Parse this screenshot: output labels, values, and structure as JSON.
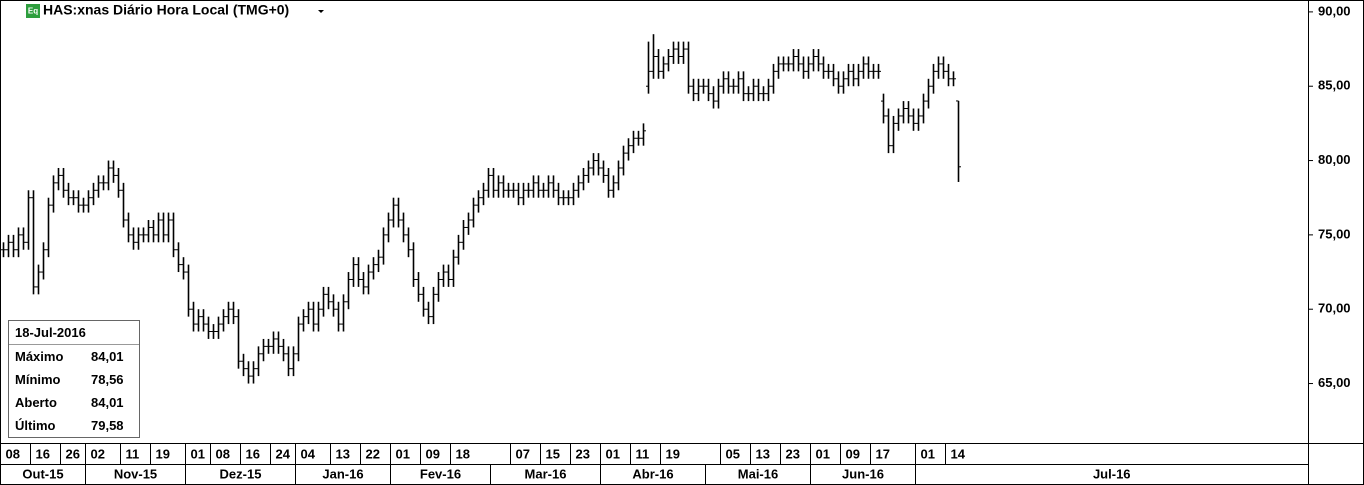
{
  "chart_data": {
    "type": "ohlc",
    "icon_label": "Eq",
    "title": "HAS:xnas Diário Hora Local (TMG+0)",
    "color": "#000000",
    "x": [
      "2015-10-08",
      "2015-10-09",
      "2015-10-12",
      "2015-10-13",
      "2015-10-14",
      "2015-10-15",
      "2015-10-16",
      "2015-10-19",
      "2015-10-20",
      "2015-10-21",
      "2015-10-22",
      "2015-10-23",
      "2015-10-26",
      "2015-10-27",
      "2015-10-28",
      "2015-10-29",
      "2015-10-30",
      "2015-11-02",
      "2015-11-03",
      "2015-11-04",
      "2015-11-05",
      "2015-11-06",
      "2015-11-09",
      "2015-11-10",
      "2015-11-11",
      "2015-11-12",
      "2015-11-13",
      "2015-11-16",
      "2015-11-17",
      "2015-11-18",
      "2015-11-19",
      "2015-11-20",
      "2015-11-23",
      "2015-11-24",
      "2015-11-25",
      "2015-11-27",
      "2015-11-30",
      "2015-12-01",
      "2015-12-02",
      "2015-12-03",
      "2015-12-04",
      "2015-12-07",
      "2015-12-08",
      "2015-12-09",
      "2015-12-10",
      "2015-12-11",
      "2015-12-14",
      "2015-12-15",
      "2015-12-16",
      "2015-12-17",
      "2015-12-18",
      "2015-12-21",
      "2015-12-22",
      "2015-12-23",
      "2015-12-24",
      "2015-12-28",
      "2015-12-29",
      "2015-12-30",
      "2015-12-31",
      "2016-01-04",
      "2016-01-05",
      "2016-01-06",
      "2016-01-07",
      "2016-01-08",
      "2016-01-11",
      "2016-01-12",
      "2016-01-13",
      "2016-01-14",
      "2016-01-15",
      "2016-01-19",
      "2016-01-20",
      "2016-01-21",
      "2016-01-22",
      "2016-01-25",
      "2016-01-26",
      "2016-01-27",
      "2016-01-28",
      "2016-01-29",
      "2016-02-01",
      "2016-02-02",
      "2016-02-03",
      "2016-02-04",
      "2016-02-05",
      "2016-02-08",
      "2016-02-09",
      "2016-02-10",
      "2016-02-11",
      "2016-02-12",
      "2016-02-16",
      "2016-02-17",
      "2016-02-18",
      "2016-02-19",
      "2016-02-22",
      "2016-02-23",
      "2016-02-24",
      "2016-02-25",
      "2016-02-26",
      "2016-02-29",
      "2016-03-01",
      "2016-03-02",
      "2016-03-03",
      "2016-03-04",
      "2016-03-07",
      "2016-03-08",
      "2016-03-09",
      "2016-03-10",
      "2016-03-11",
      "2016-03-14",
      "2016-03-15",
      "2016-03-16",
      "2016-03-17",
      "2016-03-18",
      "2016-03-21",
      "2016-03-22",
      "2016-03-23",
      "2016-03-24",
      "2016-03-28",
      "2016-03-29",
      "2016-03-30",
      "2016-03-31",
      "2016-04-01",
      "2016-04-04",
      "2016-04-05",
      "2016-04-06",
      "2016-04-07",
      "2016-04-08",
      "2016-04-11",
      "2016-04-12",
      "2016-04-13",
      "2016-04-14",
      "2016-04-15",
      "2016-04-18",
      "2016-04-19",
      "2016-04-20",
      "2016-04-21",
      "2016-04-22",
      "2016-04-25",
      "2016-04-26",
      "2016-04-27",
      "2016-04-28",
      "2016-04-29",
      "2016-05-02",
      "2016-05-03",
      "2016-05-04",
      "2016-05-05",
      "2016-05-06",
      "2016-05-09",
      "2016-05-10",
      "2016-05-11",
      "2016-05-12",
      "2016-05-13",
      "2016-05-16",
      "2016-05-17",
      "2016-05-18",
      "2016-05-19",
      "2016-05-20",
      "2016-05-23",
      "2016-05-24",
      "2016-05-25",
      "2016-05-26",
      "2016-05-27",
      "2016-05-31",
      "2016-06-01",
      "2016-06-02",
      "2016-06-03",
      "2016-06-06",
      "2016-06-07",
      "2016-06-08",
      "2016-06-09",
      "2016-06-10",
      "2016-06-13",
      "2016-06-14",
      "2016-06-15",
      "2016-06-16",
      "2016-06-17",
      "2016-06-21",
      "2016-06-22",
      "2016-06-23",
      "2016-06-24",
      "2016-06-27",
      "2016-06-28",
      "2016-06-29",
      "2016-06-30",
      "2016-07-01",
      "2016-07-05",
      "2016-07-06",
      "2016-07-07",
      "2016-07-08",
      "2016-07-11",
      "2016-07-14",
      "2016-07-15",
      "2016-07-18"
    ],
    "open": [
      74,
      74,
      74.5,
      74,
      75,
      74.5,
      77.5,
      71.5,
      72.5,
      74,
      77,
      78.5,
      79,
      78,
      77.5,
      77.5,
      77,
      77,
      77.5,
      78,
      78.5,
      78.5,
      79.5,
      79,
      78,
      76,
      75,
      74.5,
      75,
      75,
      75.5,
      75,
      76,
      75,
      76,
      74,
      73,
      72.5,
      70,
      69,
      69.5,
      69,
      68.5,
      68.5,
      69,
      69.5,
      70,
      69.5,
      66.5,
      66,
      65.5,
      66,
      67,
      67.5,
      67.5,
      68,
      67.5,
      67,
      66,
      67,
      69,
      69.5,
      70,
      69,
      70,
      71,
      70.5,
      70,
      69,
      70.5,
      72,
      73,
      72,
      71.5,
      72.5,
      73,
      73.5,
      75,
      76,
      77,
      76,
      75,
      74,
      72,
      71,
      70,
      69.5,
      71,
      72,
      72.5,
      72,
      73.5,
      74.5,
      75.5,
      76,
      77,
      77.5,
      78,
      79,
      78,
      78.5,
      78,
      78,
      78,
      77.5,
      78,
      78,
      78.5,
      78,
      78,
      78.5,
      78,
      77.5,
      77.5,
      77.5,
      78,
      78.5,
      79,
      79.5,
      80,
      79.5,
      79,
      78,
      78.5,
      79.5,
      80.5,
      81,
      81.5,
      81.5,
      85,
      86,
      87,
      86,
      86.5,
      87,
      87.5,
      87,
      87.5,
      85,
      84.5,
      85,
      85,
      84.5,
      84,
      85,
      85.5,
      85,
      85,
      85.5,
      84.5,
      84.5,
      85,
      84.5,
      84.5,
      85,
      86,
      86.5,
      86.5,
      86.5,
      87,
      86.5,
      86,
      86.5,
      87,
      86.5,
      86,
      86,
      85.5,
      85,
      85.5,
      86,
      85.5,
      86,
      86.5,
      86,
      86,
      84,
      83,
      81,
      82.5,
      83,
      83.5,
      83,
      82.5,
      83,
      84,
      85,
      86,
      86.5,
      86,
      85.5,
      84.01
    ],
    "high": [
      74.5,
      75,
      75,
      75.5,
      75.5,
      78,
      78,
      73,
      74.5,
      77.5,
      79,
      79.5,
      79.5,
      78.5,
      78,
      78,
      77.5,
      78,
      78.5,
      79,
      79,
      80,
      80,
      79.5,
      78.5,
      76.5,
      75.5,
      75.5,
      75.5,
      76,
      76,
      76.5,
      76.5,
      76.5,
      76.5,
      74.5,
      73.5,
      73,
      70.5,
      70,
      70,
      69.5,
      69,
      69.5,
      70,
      70.5,
      70.5,
      70,
      67,
      66.5,
      66.5,
      67.5,
      68,
      68,
      68.5,
      68.5,
      68,
      67.5,
      67.5,
      69.5,
      70,
      70.5,
      70.5,
      70.5,
      71.5,
      71.5,
      71,
      70.5,
      71,
      72.5,
      73.5,
      73.5,
      72.5,
      73,
      73.5,
      74,
      75.5,
      76.5,
      77.5,
      77.5,
      76.5,
      75.5,
      74.5,
      72.5,
      71.5,
      70.5,
      71.5,
      72.5,
      73,
      73,
      74,
      75,
      76,
      76.5,
      77.5,
      78,
      78.5,
      79.5,
      79.5,
      79,
      79,
      78.5,
      78.5,
      78.5,
      78.5,
      78.5,
      79,
      79,
      78.5,
      79,
      79,
      78.5,
      78,
      78,
      78.5,
      79,
      79.5,
      80,
      80.5,
      80.5,
      80,
      79.5,
      79,
      80,
      81,
      81.5,
      82,
      82,
      82.5,
      88,
      88.5,
      87.5,
      87,
      87.5,
      88,
      88,
      88,
      88,
      85.5,
      85.5,
      85.5,
      85.5,
      85,
      85.5,
      86,
      86,
      85.5,
      86,
      86,
      85,
      85.5,
      85.5,
      85,
      85.5,
      86.5,
      87,
      87,
      87,
      87.5,
      87.5,
      87,
      87,
      87.5,
      87.5,
      87,
      86.5,
      86.5,
      86,
      86,
      86.5,
      86.5,
      86.5,
      87,
      87,
      86.5,
      86.5,
      84.5,
      83.5,
      83,
      83.5,
      84,
      84,
      83.5,
      83.5,
      84.5,
      85.5,
      86.5,
      87,
      87,
      86.5,
      86,
      84.01
    ],
    "low": [
      73.5,
      73.5,
      73.5,
      73.5,
      74,
      74,
      71,
      71,
      72,
      73.5,
      76.5,
      78,
      77.5,
      77,
      77,
      76.5,
      76.5,
      76.5,
      77,
      77.5,
      78,
      78,
      78.5,
      77.5,
      75.5,
      74.5,
      74,
      74,
      74.5,
      74.5,
      74.5,
      74.5,
      74.5,
      74.5,
      73.5,
      72.5,
      72,
      69.5,
      68.5,
      68.5,
      68.5,
      68,
      68,
      68,
      68.5,
      69,
      69,
      66,
      65.5,
      65,
      65,
      65.5,
      66.5,
      67,
      67,
      67,
      66.5,
      65.5,
      65.5,
      66.5,
      68.5,
      69,
      68.5,
      68.5,
      69.5,
      70,
      69.5,
      68.5,
      68.5,
      70,
      71.5,
      71.5,
      71,
      71,
      72,
      72.5,
      73,
      74.5,
      75.5,
      75.5,
      74.5,
      73.5,
      71.5,
      70.5,
      69.5,
      69,
      69,
      70.5,
      71.5,
      71.5,
      71.5,
      73,
      74,
      75,
      75.5,
      76.5,
      77,
      77.5,
      77.5,
      77.5,
      77.5,
      77.5,
      77.5,
      77,
      77,
      77.5,
      77.5,
      77.5,
      77.5,
      77.5,
      77.5,
      77,
      77,
      77,
      77,
      77.5,
      78,
      78.5,
      79,
      79,
      78.5,
      77.5,
      77.5,
      78,
      79,
      80,
      80.5,
      81,
      81,
      84.5,
      85.5,
      85.5,
      85.5,
      86,
      86.5,
      86.5,
      86.5,
      84.5,
      84,
      84,
      84.5,
      84,
      83.5,
      83.5,
      84.5,
      84.5,
      84.5,
      84.5,
      84,
      84,
      84,
      84,
      84,
      84,
      84.5,
      85.5,
      86,
      86,
      86,
      86,
      85.5,
      85.5,
      86,
      86,
      85.5,
      85.5,
      85,
      84.5,
      84.5,
      85,
      85,
      85,
      85.5,
      85.5,
      85.5,
      85.5,
      82.5,
      80.5,
      80.5,
      82,
      82.5,
      82.5,
      82,
      82,
      82.5,
      83.5,
      84.5,
      85.5,
      85.5,
      85,
      85,
      78.56
    ],
    "close": [
      74,
      74.5,
      74,
      75,
      74.5,
      77.5,
      71.5,
      72.5,
      74,
      77,
      78.5,
      79,
      78,
      77.5,
      77.5,
      77,
      77,
      77.5,
      78,
      78.5,
      78.5,
      79.5,
      79,
      78,
      76,
      75,
      74.5,
      75,
      75,
      75.5,
      75,
      76,
      75,
      76,
      74,
      73,
      72.5,
      70,
      69,
      69.5,
      69,
      68.5,
      68.5,
      69,
      69.5,
      70,
      69.5,
      66.5,
      66,
      65.5,
      66,
      67,
      67.5,
      67.5,
      68,
      67.5,
      67,
      66,
      67,
      69,
      69.5,
      70,
      69,
      70,
      71,
      70.5,
      70,
      69,
      70.5,
      72,
      73,
      72,
      71.5,
      72.5,
      73,
      73.5,
      75,
      76,
      77,
      76,
      75,
      74,
      72,
      71,
      70,
      69.5,
      71,
      72,
      72.5,
      72,
      73.5,
      74.5,
      75.5,
      76,
      77,
      77.5,
      78,
      79,
      78,
      78.5,
      78,
      78,
      78,
      77.5,
      78,
      78,
      78.5,
      78,
      78,
      78.5,
      78,
      77.5,
      77.5,
      77.5,
      78,
      78.5,
      79,
      79.5,
      80,
      79.5,
      79,
      78,
      78.5,
      79.5,
      80.5,
      81,
      81.5,
      81.5,
      82,
      86,
      87,
      86,
      86.5,
      87,
      87.5,
      87,
      87.5,
      85,
      84.5,
      85,
      85,
      84.5,
      84,
      85,
      85.5,
      85,
      85,
      85.5,
      84.5,
      84.5,
      85,
      84.5,
      84.5,
      85,
      86,
      86.5,
      86.5,
      86.5,
      87,
      86.5,
      86,
      86.5,
      87,
      86.5,
      86,
      86,
      85.5,
      85,
      85.5,
      86,
      85.5,
      86,
      86.5,
      86,
      86,
      86,
      83,
      81,
      82.5,
      83,
      83.5,
      83,
      82.5,
      83,
      84,
      85,
      86,
      86.5,
      86,
      85.5,
      85.5,
      79.58
    ],
    "ylim": [
      61,
      90.8
    ],
    "yticks": [
      {
        "value": 65,
        "label": "65,00"
      },
      {
        "value": 70,
        "label": "70,00"
      },
      {
        "value": 75,
        "label": "75,00"
      },
      {
        "value": 80,
        "label": "80,00"
      },
      {
        "value": 85,
        "label": "85,00"
      },
      {
        "value": 90,
        "label": "90,00"
      }
    ],
    "xticks": [
      {
        "value": "2015-10-08",
        "label": "08"
      },
      {
        "value": "2015-10-16",
        "label": "16"
      },
      {
        "value": "2015-10-26",
        "label": "26"
      },
      {
        "value": "2015-11-02",
        "label": "02"
      },
      {
        "value": "2015-11-11",
        "label": "11"
      },
      {
        "value": "2015-11-19",
        "label": "19"
      },
      {
        "value": "2015-12-01",
        "label": "01"
      },
      {
        "value": "2015-12-08",
        "label": "08"
      },
      {
        "value": "2015-12-16",
        "label": "16"
      },
      {
        "value": "2015-12-24",
        "label": "24"
      },
      {
        "value": "2016-01-04",
        "label": "04"
      },
      {
        "value": "2016-01-13",
        "label": "13"
      },
      {
        "value": "2016-01-22",
        "label": "22"
      },
      {
        "value": "2016-02-01",
        "label": "01"
      },
      {
        "value": "2016-02-09",
        "label": "09"
      },
      {
        "value": "2016-02-18",
        "label": "18"
      },
      {
        "value": "2016-03-07",
        "label": "07"
      },
      {
        "value": "2016-03-15",
        "label": "15"
      },
      {
        "value": "2016-03-23",
        "label": "23"
      },
      {
        "value": "2016-04-01",
        "label": "01"
      },
      {
        "value": "2016-04-11",
        "label": "11"
      },
      {
        "value": "2016-04-19",
        "label": "19"
      },
      {
        "value": "2016-05-05",
        "label": "05"
      },
      {
        "value": "2016-05-13",
        "label": "13"
      },
      {
        "value": "2016-05-23",
        "label": "23"
      },
      {
        "value": "2016-06-01",
        "label": "01"
      },
      {
        "value": "2016-06-09",
        "label": "09"
      },
      {
        "value": "2016-06-17",
        "label": "17"
      },
      {
        "value": "2016-07-01",
        "label": "01"
      },
      {
        "value": "2016-07-14",
        "label": "14"
      }
    ],
    "month_ticks": [
      {
        "value": "2015-10-08",
        "label": "Out-15"
      },
      {
        "value": "2015-11-02",
        "label": "Nov-15"
      },
      {
        "value": "2015-12-01",
        "label": "Dez-15"
      },
      {
        "value": "2016-01-04",
        "label": "Jan-16"
      },
      {
        "value": "2016-02-01",
        "label": "Fev-16"
      },
      {
        "value": "2016-03-01",
        "label": "Mar-16"
      },
      {
        "value": "2016-04-01",
        "label": "Abr-16"
      },
      {
        "value": "2016-05-02",
        "label": "Mai-16"
      },
      {
        "value": "2016-06-01",
        "label": "Jun-16"
      },
      {
        "value": "2016-07-01",
        "label": "Jul-16"
      }
    ],
    "info_box": {
      "date": "18-Jul-2016",
      "rows": [
        {
          "label": "Máximo",
          "value": "84,01"
        },
        {
          "label": "Mínimo",
          "value": "78,56"
        },
        {
          "label": "Aberto",
          "value": "84,01"
        },
        {
          "label": "Último",
          "value": "79,58"
        }
      ]
    }
  }
}
